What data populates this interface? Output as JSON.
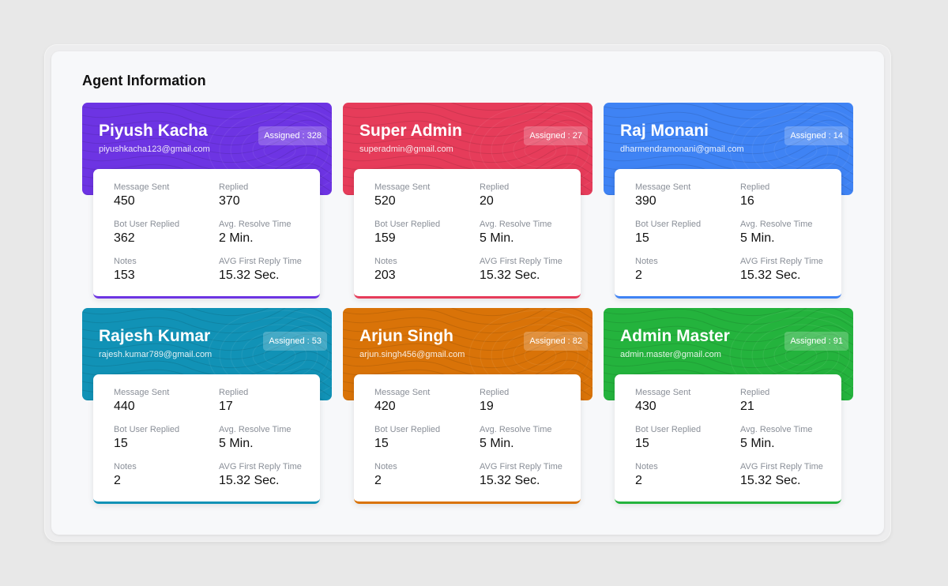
{
  "page": {
    "title": "Agent Information"
  },
  "labels": {
    "message_sent": "Message Sent",
    "replied": "Replied",
    "bot_user_replied": "Bot User Replied",
    "avg_resolve_time": "Avg. Resolve Time",
    "notes": "Notes",
    "avg_first_reply_time": "AVG First Reply Time"
  },
  "agents": [
    {
      "name": "Piyush Kacha",
      "email": "piyushkacha123@gmail.com",
      "assigned": "Assigned : 328",
      "color": "#6d34e3",
      "message_sent": "450",
      "replied": "370",
      "bot_user_replied": "362",
      "avg_resolve_time": "2 Min.",
      "notes": "153",
      "avg_first_reply_time": "15.32 Sec."
    },
    {
      "name": "Super Admin",
      "email": "superadmin@gmail.com",
      "assigned": "Assigned : 27",
      "color": "#e63c5a",
      "message_sent": "520",
      "replied": "20",
      "bot_user_replied": "159",
      "avg_resolve_time": "5 Min.",
      "notes": "203",
      "avg_first_reply_time": "15.32 Sec."
    },
    {
      "name": "Raj Monani",
      "email": "dharmendramonani@gmail.com",
      "assigned": "Assigned : 14",
      "color": "#3f83f4",
      "message_sent": "390",
      "replied": "16",
      "bot_user_replied": "15",
      "avg_resolve_time": "5 Min.",
      "notes": "2",
      "avg_first_reply_time": "15.32 Sec."
    },
    {
      "name": "Rajesh Kumar",
      "email": "rajesh.kumar789@gmail.com",
      "assigned": "Assigned : 53",
      "color": "#1192b6",
      "message_sent": "440",
      "replied": "17",
      "bot_user_replied": "15",
      "avg_resolve_time": "5 Min.",
      "notes": "2",
      "avg_first_reply_time": "15.32 Sec."
    },
    {
      "name": "Arjun Singh",
      "email": "arjun.singh456@gmail.com",
      "assigned": "Assigned : 82",
      "color": "#d97308",
      "message_sent": "420",
      "replied": "19",
      "bot_user_replied": "15",
      "avg_resolve_time": "5 Min.",
      "notes": "2",
      "avg_first_reply_time": "15.32 Sec."
    },
    {
      "name": "Admin Master",
      "email": "admin.master@gmail.com",
      "assigned": "Assigned : 91",
      "color": "#24b33d",
      "message_sent": "430",
      "replied": "21",
      "bot_user_replied": "15",
      "avg_resolve_time": "5 Min.",
      "notes": "2",
      "avg_first_reply_time": "15.32 Sec."
    }
  ]
}
